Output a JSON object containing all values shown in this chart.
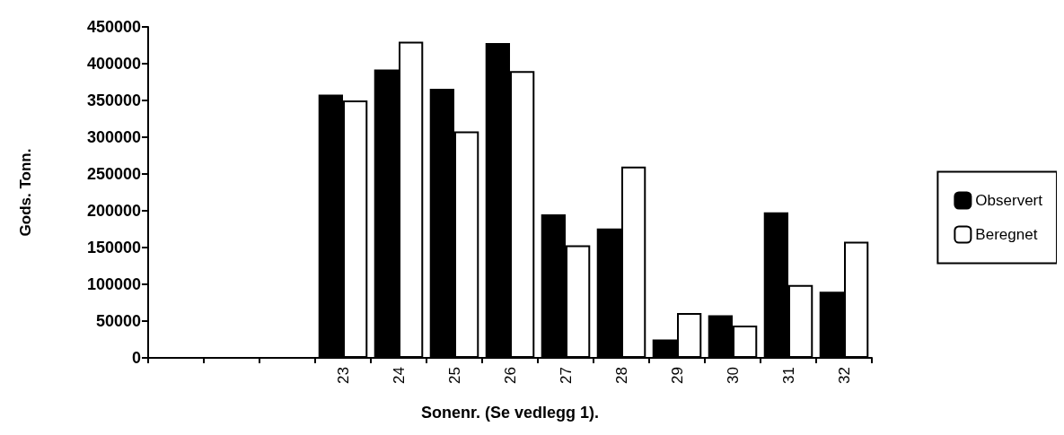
{
  "chart_data": {
    "type": "bar",
    "xlabel": "Sonenr. (Se vedlegg 1).",
    "ylabel": "Gods. Tonn.",
    "categories": [
      null,
      null,
      null,
      "23",
      "24",
      "25",
      "26",
      "27",
      "28",
      "29",
      "30",
      "31",
      "32"
    ],
    "series": [
      {
        "name": "Observert",
        "color": "#000000",
        "values": [
          null,
          null,
          null,
          358000,
          392000,
          366000,
          428000,
          195000,
          176000,
          25000,
          58000,
          198000,
          90000
        ]
      },
      {
        "name": "Beregnet",
        "color": "#ffffff",
        "values": [
          null,
          null,
          null,
          350000,
          430000,
          308000,
          390000,
          153000,
          260000,
          61000,
          44000,
          99000,
          158000
        ]
      }
    ],
    "ylim": [
      0,
      450000
    ],
    "yticks": [
      0,
      50000,
      100000,
      150000,
      200000,
      250000,
      300000,
      350000,
      400000,
      450000
    ],
    "grid": false,
    "legend": "right"
  }
}
